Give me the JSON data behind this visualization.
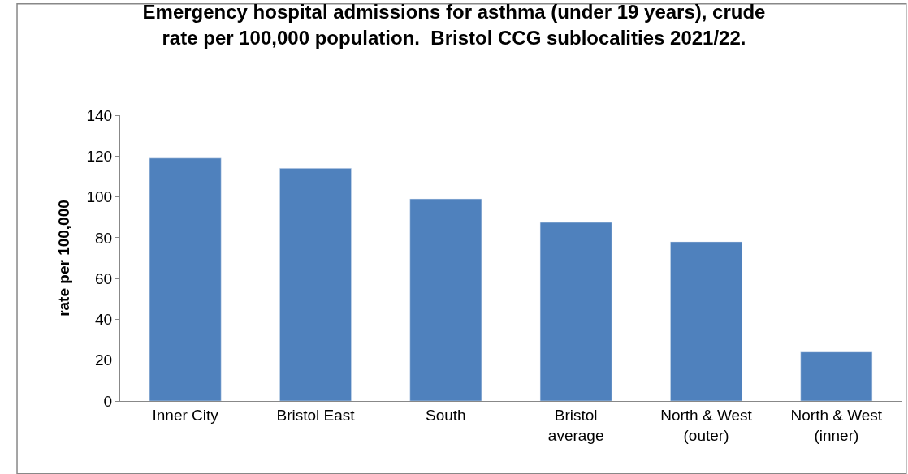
{
  "chart_data": {
    "type": "bar",
    "title": "Emergency hospital admissions for asthma (under 19 years), crude rate per 100,000 population.  Bristol CCG sublocalities 2021/22.",
    "ylabel": "rate per 100,000",
    "categories": [
      "Inner City",
      "Bristol East",
      "South",
      "Bristol average",
      "North & West (outer)",
      "North & West (inner)"
    ],
    "values": [
      119,
      114,
      99,
      87.5,
      78,
      24
    ],
    "color": "#4f81bd",
    "ylim": [
      0,
      140
    ],
    "yticks": [
      0,
      20,
      40,
      60,
      80,
      100,
      120,
      140
    ]
  }
}
